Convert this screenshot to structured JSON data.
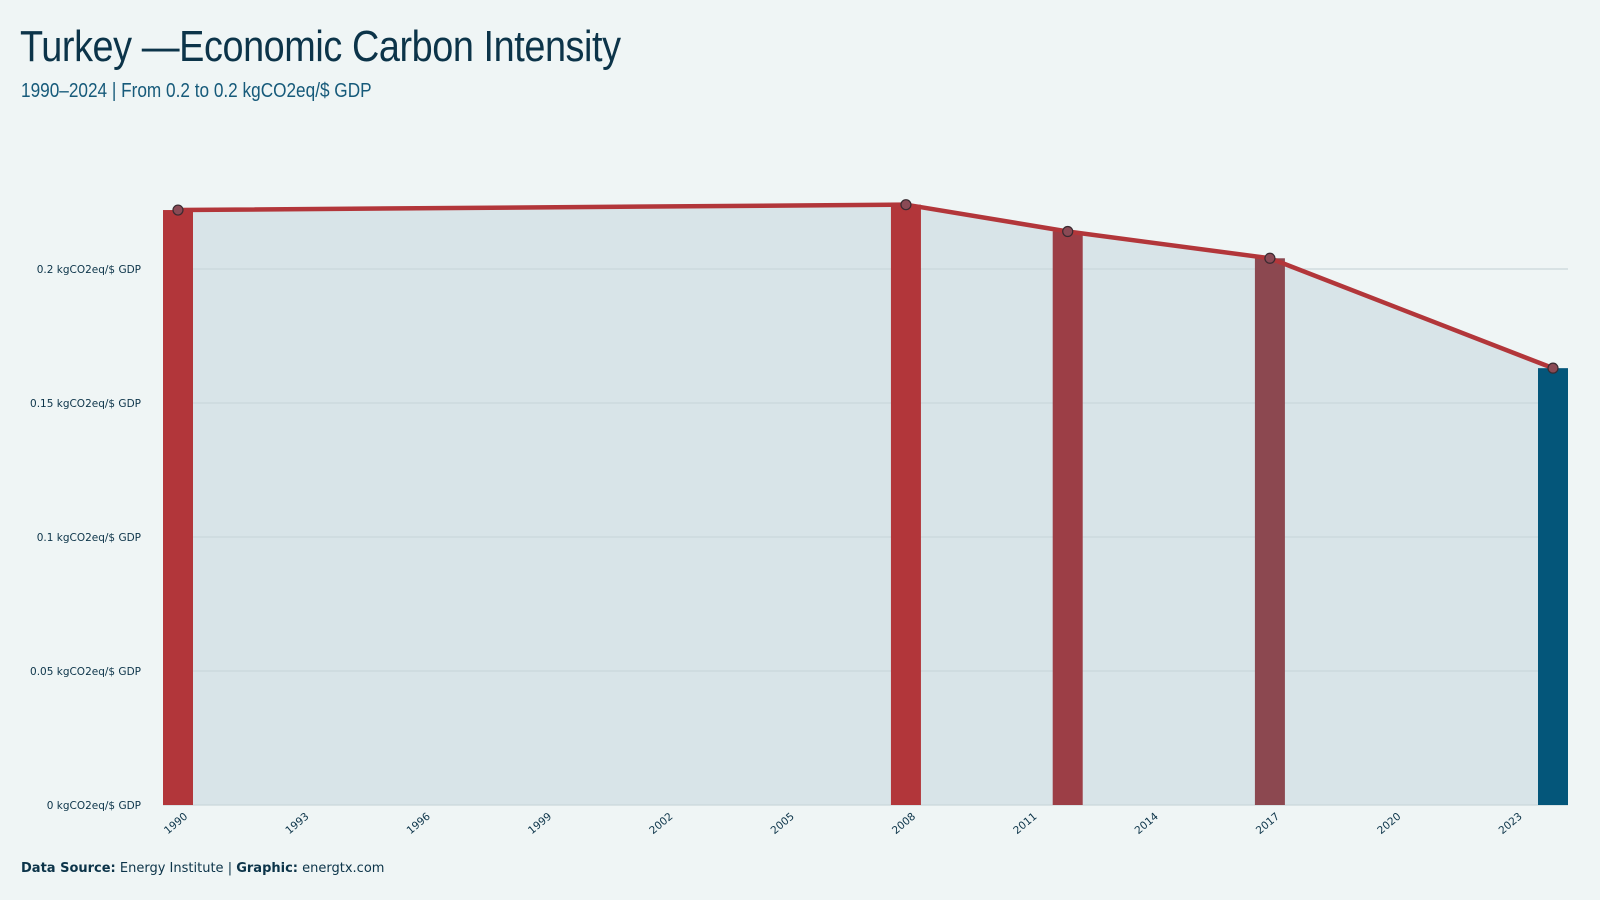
{
  "title": "Turkey —Economic Carbon Intensity",
  "subtitle": "1990–2024 | From 0.2 to 0.2 kgCO2eq/$ GDP",
  "footer": {
    "source_label": "Data Source:",
    "source_value": "Energy Institute",
    "separator": "|",
    "graphic_label": "Graphic:",
    "graphic_value": "energtx.com"
  },
  "colors": {
    "background": "#eff5f5",
    "area_fill": "#d8e4e8",
    "line": "#b2363a",
    "grid": "#c9d6db",
    "axis_text": "#0c3449",
    "bar_last": "#04567a"
  },
  "chart_data": {
    "type": "bar",
    "title": "Turkey —Economic Carbon Intensity",
    "subtitle": "1990–2024 | From 0.2 to 0.2 kgCO2eq/$ GDP",
    "xlabel": "",
    "ylabel": "",
    "x_range": [
      1990,
      2024
    ],
    "x_ticks": [
      "1990",
      "1993",
      "1996",
      "1999",
      "2002",
      "2005",
      "2008",
      "2011",
      "2014",
      "2017",
      "2020",
      "2023"
    ],
    "ylim": [
      0,
      0.25
    ],
    "y_ticks": [
      {
        "value": 0,
        "label": "0 kgCO2eq/$ GDP"
      },
      {
        "value": 0.05,
        "label": "0.05 kgCO2eq/$ GDP"
      },
      {
        "value": 0.1,
        "label": "0.1 kgCO2eq/$ GDP"
      },
      {
        "value": 0.15,
        "label": "0.15 kgCO2eq/$ GDP"
      },
      {
        "value": 0.2,
        "label": "0.2 kgCO2eq/$ GDP"
      }
    ],
    "grid": true,
    "series": [
      {
        "points": [
          {
            "year": 1990,
            "value": 0.222,
            "color": "#b2363a"
          },
          {
            "year": 2008,
            "value": 0.224,
            "color": "#b2363a"
          },
          {
            "year": 2012,
            "value": 0.214,
            "color": "#9c3e46"
          },
          {
            "year": 2017,
            "value": 0.204,
            "color": "#8c4850"
          },
          {
            "year": 2024,
            "value": 0.163,
            "color": "#04567a"
          }
        ]
      }
    ]
  }
}
